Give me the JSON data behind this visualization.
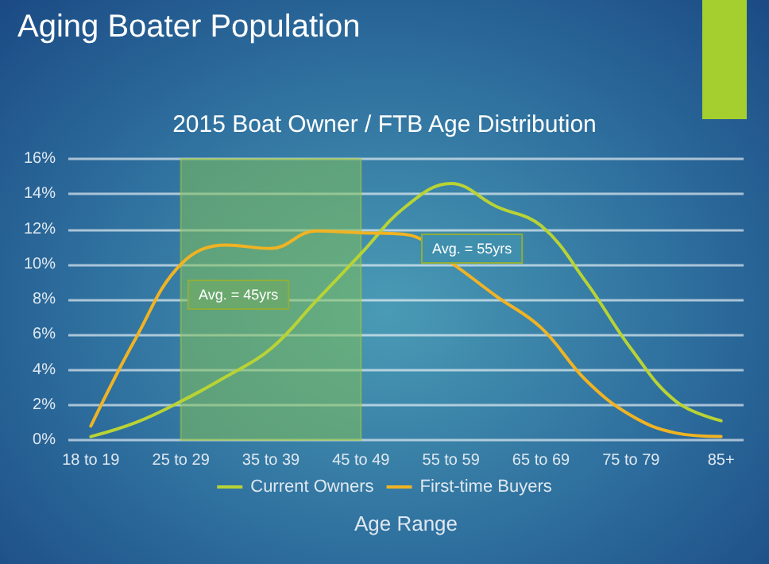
{
  "chart_data": {
    "type": "line",
    "title": "Aging Boater Population",
    "subtitle": "2015 Boat Owner / FTB Age Distribution",
    "xlabel": "Age Range",
    "categories": [
      "18 to 19",
      null,
      "25 to 29",
      null,
      "35 to 39",
      null,
      "45 to 49",
      null,
      "55 to 59",
      null,
      "65 to 69",
      null,
      "75 to 79",
      null,
      "85+"
    ],
    "series": [
      {
        "name": "Current Owners",
        "color": "#b8d335",
        "values": [
          0.2,
          1.0,
          2.2,
          3.6,
          5.2,
          7.9,
          10.6,
          13.3,
          14.6,
          13.3,
          12.2,
          9.0,
          5.2,
          2.2,
          1.1
        ]
      },
      {
        "name": "First-time Buyers",
        "color": "#f0b323",
        "values": [
          0.8,
          5.8,
          10.0,
          11.1,
          10.9,
          11.9,
          11.8,
          11.7,
          10.1,
          8.2,
          6.4,
          3.4,
          1.4,
          0.4,
          0.2
        ]
      }
    ],
    "ylim": [
      0,
      16
    ],
    "yticks": [
      {
        "value": 0,
        "label": "0%"
      },
      {
        "value": 2,
        "label": "2%"
      },
      {
        "value": 4,
        "label": "4%"
      },
      {
        "value": 6,
        "label": "6%"
      },
      {
        "value": 8,
        "label": "8%"
      },
      {
        "value": 10,
        "label": "10%"
      },
      {
        "value": 12,
        "label": "12%"
      },
      {
        "value": 14,
        "label": "14%"
      },
      {
        "value": 16,
        "label": "16%"
      }
    ],
    "bands": [
      {
        "axis": "x",
        "from": "25 to 29",
        "to": "45 to 49",
        "color": "#7fbf5a"
      }
    ],
    "annotations": [
      "Avg. = 45yrs",
      "Avg. = 55yrs"
    ],
    "grid": "y",
    "legend": "bottom",
    "marker": "none",
    "line_style": "solid"
  }
}
